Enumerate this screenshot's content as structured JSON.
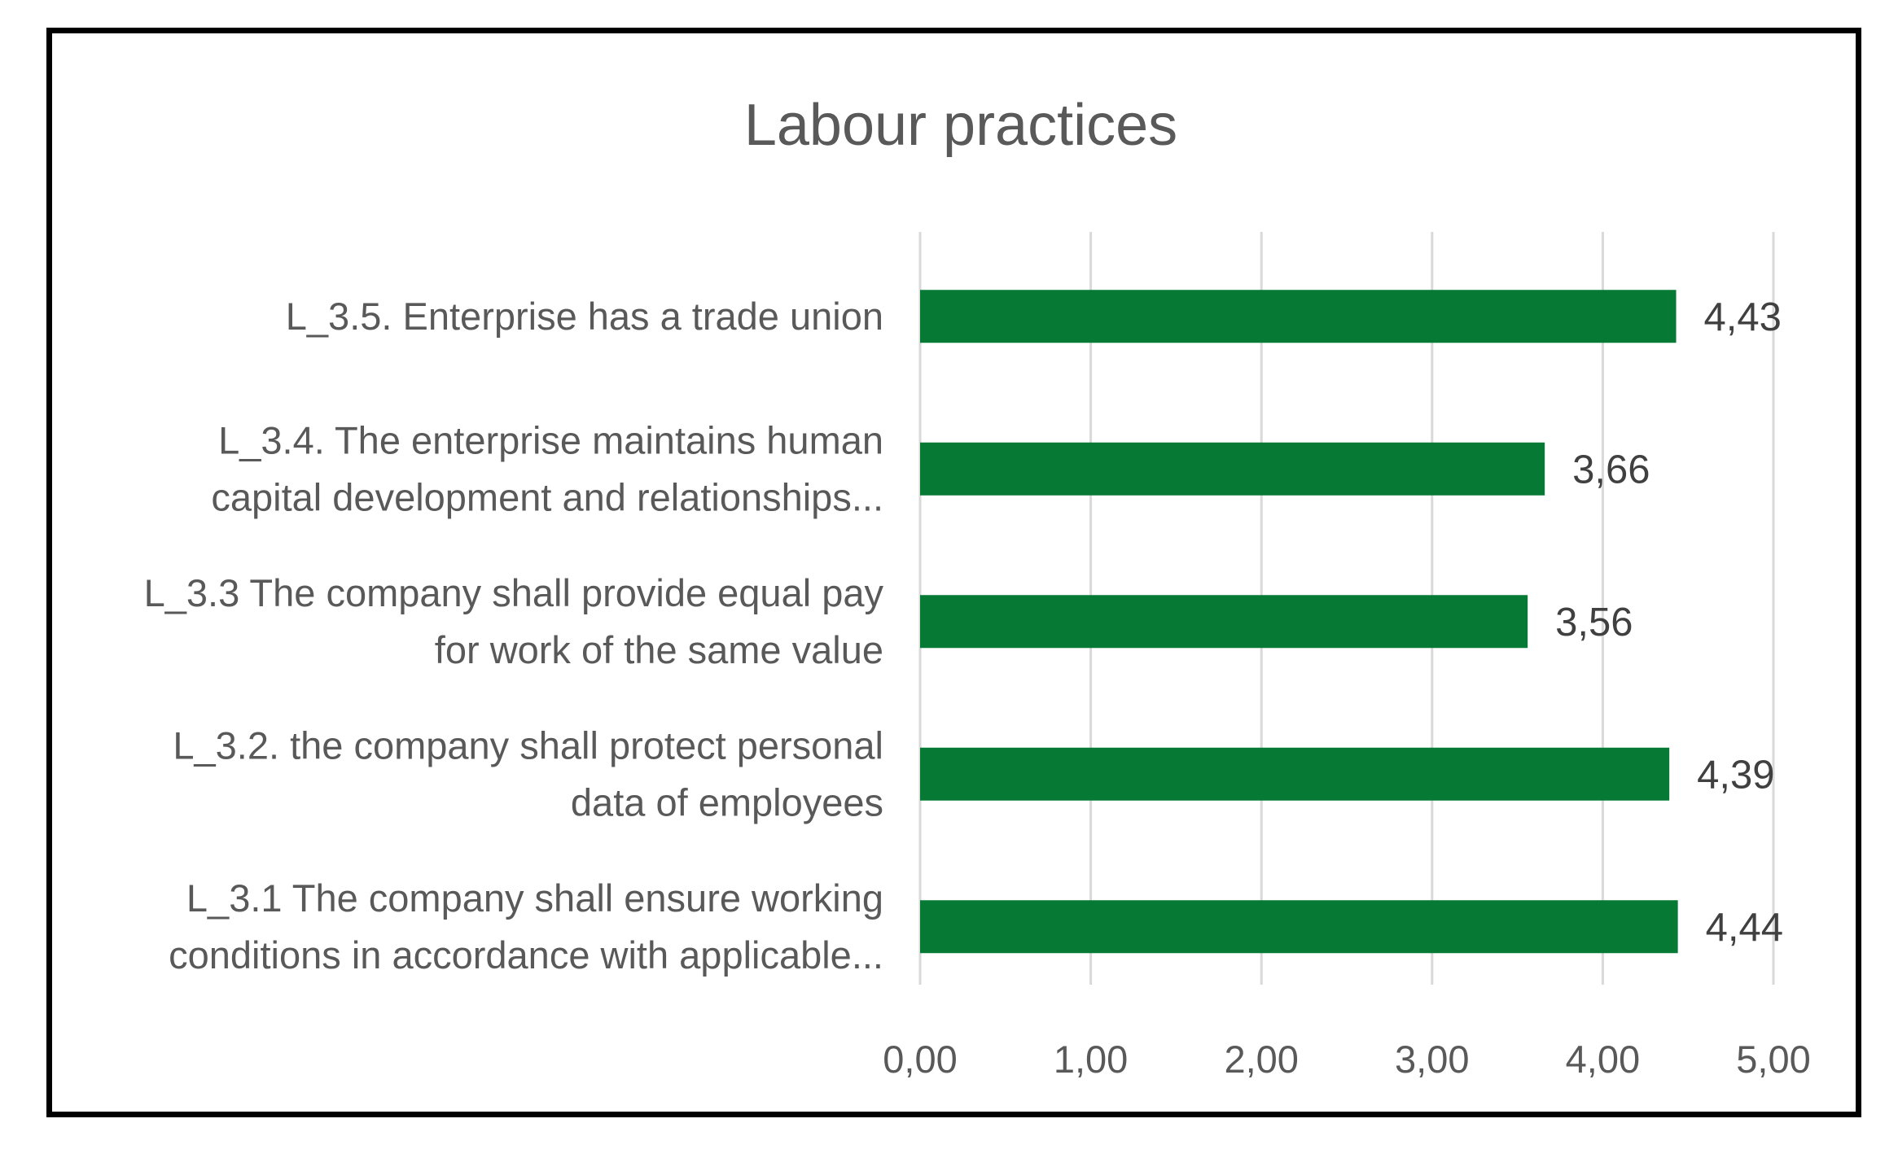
{
  "chart_data": {
    "type": "bar",
    "orientation": "horizontal",
    "title": "Labour practices",
    "categories": [
      [
        "L_3.5. Enterprise has a trade union"
      ],
      [
        "L_3.4. The enterprise maintains human",
        "capital development and relationships..."
      ],
      [
        "L_3.3 The company shall provide equal pay",
        "for work of the same value"
      ],
      [
        "L_3.2. the company shall protect personal",
        "data of employees"
      ],
      [
        "L_3.1 The company shall ensure working",
        "conditions in accordance with applicable..."
      ]
    ],
    "values": [
      4.43,
      3.66,
      3.56,
      4.39,
      4.44
    ],
    "data_labels": [
      "4,43",
      "3,66",
      "3,56",
      "4,39",
      "4,44"
    ],
    "x_ticks": [
      "0,00",
      "1,00",
      "2,00",
      "3,00",
      "4,00",
      "5,00"
    ],
    "xlim": [
      0,
      5
    ],
    "xlabel": "",
    "ylabel": "",
    "grid": "vertical",
    "legend": "none",
    "bar_color": "#067A34",
    "grid_color": "#D9D9D9",
    "text_color": "#595959"
  }
}
